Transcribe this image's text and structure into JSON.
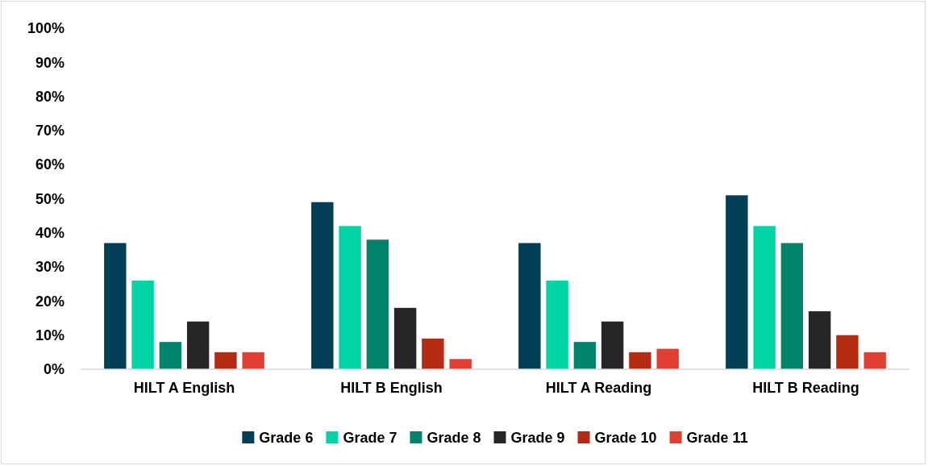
{
  "chart_data": {
    "type": "bar",
    "categories": [
      "HILT A English",
      "HILT B English",
      "HILT A Reading",
      "HILT B Reading"
    ],
    "series": [
      {
        "name": "Grade 6",
        "color": "#023e55",
        "values": [
          37,
          49,
          37,
          51
        ]
      },
      {
        "name": "Grade 7",
        "color": "#00d4a4",
        "values": [
          26,
          42,
          26,
          42
        ]
      },
      {
        "name": "Grade 8",
        "color": "#00836a",
        "values": [
          8,
          38,
          8,
          37
        ]
      },
      {
        "name": "Grade 9",
        "color": "#262626",
        "values": [
          14,
          18,
          14,
          17
        ]
      },
      {
        "name": "Grade 10",
        "color": "#b52a12",
        "values": [
          5,
          9,
          5,
          10
        ]
      },
      {
        "name": "Grade 11",
        "color": "#e23f33",
        "values": [
          5,
          3,
          6,
          5
        ]
      }
    ],
    "ylim": [
      0,
      100
    ],
    "yticks": [
      {
        "value": 0,
        "label": "0%"
      },
      {
        "value": 10,
        "label": "10%"
      },
      {
        "value": 20,
        "label": "20%"
      },
      {
        "value": 30,
        "label": "30%"
      },
      {
        "value": 40,
        "label": "40%"
      },
      {
        "value": 50,
        "label": "50%"
      },
      {
        "value": 60,
        "label": "60%"
      },
      {
        "value": 70,
        "label": "70%"
      },
      {
        "value": 80,
        "label": "80%"
      },
      {
        "value": 90,
        "label": "90%"
      },
      {
        "value": 100,
        "label": "100%"
      }
    ],
    "grid": false,
    "legend": "bottom"
  }
}
